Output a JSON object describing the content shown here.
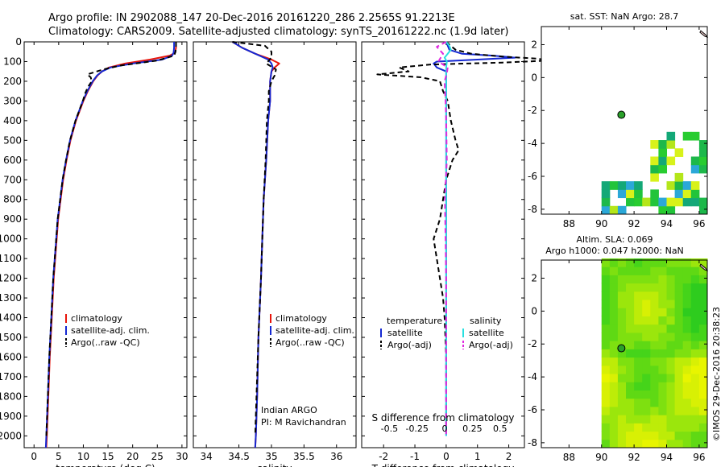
{
  "header": {
    "line1": "Argo profile: IN 2902088_147 20-Dec-2016 20161220_286 2.2565S 91.2213E",
    "line2": "Climatology: CARS2009. Satellite-adjusted climatology: synTS_20161222.nc (1.9d later)"
  },
  "colors": {
    "clim": "#e8140a",
    "sat": "#1428d2",
    "argo": "#000000",
    "sat_sal": "#28e0e0",
    "argo_sal": "#e028e0",
    "marker": "#2aa02a"
  },
  "chart_data": [
    {
      "type": "line",
      "name": "temperature-profile",
      "xlabel": "temperature (deg C)",
      "xlim": [
        -2,
        31
      ],
      "ylim": [
        2060,
        0
      ],
      "xticks": [
        0,
        5,
        10,
        15,
        20,
        25,
        30
      ],
      "yticks": [
        0,
        100,
        200,
        300,
        400,
        500,
        600,
        700,
        800,
        900,
        1000,
        1100,
        1200,
        1300,
        1400,
        1500,
        1600,
        1700,
        1800,
        1900,
        2000
      ],
      "series": [
        {
          "name": "climatology",
          "style": "clim",
          "depth": [
            0,
            30,
            55,
            70,
            90,
            110,
            130,
            150,
            170,
            200,
            250,
            300,
            400,
            500,
            600,
            700,
            800,
            900,
            1000,
            1200,
            1400,
            1600,
            1800,
            2000,
            2060
          ],
          "values": [
            28.8,
            28.8,
            28.6,
            27.5,
            23.5,
            18.5,
            15.2,
            13.8,
            12.9,
            12.0,
            10.9,
            10.0,
            8.5,
            7.4,
            6.6,
            5.9,
            5.4,
            4.9,
            4.6,
            4.0,
            3.6,
            3.2,
            2.9,
            2.6,
            2.5
          ]
        },
        {
          "name": "satellite-adj. clim.",
          "style": "sat",
          "depth": [
            0,
            30,
            55,
            70,
            90,
            110,
            130,
            150,
            170,
            200,
            250,
            300,
            400,
            500,
            600,
            700,
            800,
            900,
            1000,
            1200,
            1400,
            1600,
            1800,
            2000,
            2060
          ],
          "values": [
            28.4,
            28.4,
            28.3,
            28.0,
            26.0,
            20.0,
            15.5,
            13.8,
            12.8,
            11.9,
            10.8,
            9.9,
            8.4,
            7.3,
            6.5,
            5.8,
            5.3,
            4.8,
            4.5,
            3.9,
            3.5,
            3.1,
            2.8,
            2.5,
            2.4
          ]
        },
        {
          "name": "Argo(..raw -QC)",
          "style": "argo",
          "depth": [
            0,
            20,
            50,
            70,
            95,
            120,
            140,
            165,
            180,
            200,
            230,
            260,
            300,
            400,
            500,
            600,
            700,
            800,
            900,
            1000,
            1200,
            1400,
            1600,
            1800,
            2000
          ],
          "values": [
            28.8,
            28.8,
            28.7,
            28.4,
            25.0,
            17.5,
            14.0,
            10.8,
            11.5,
            11.7,
            10.9,
            10.4,
            9.9,
            8.4,
            7.3,
            6.5,
            5.8,
            5.3,
            4.8,
            4.5,
            3.9,
            3.5,
            3.1,
            2.8,
            2.5
          ]
        }
      ],
      "legend": [
        "climatology",
        "satellite-adj. clim.",
        "Argo(..raw -QC)"
      ]
    },
    {
      "type": "line",
      "name": "salinity-profile",
      "xlabel": "salinity",
      "xlim": [
        33.8,
        36.3
      ],
      "ylim": [
        2060,
        0
      ],
      "xticks": [
        34,
        34.5,
        35,
        35.5,
        36
      ],
      "series": [
        {
          "name": "climatology",
          "style": "clim",
          "depth": [
            0,
            30,
            60,
            90,
            110,
            130,
            150,
            200,
            300,
            400,
            600,
            800,
            1000,
            1200,
            1500,
            1800,
            2000,
            2060
          ],
          "values": [
            34.4,
            34.55,
            34.75,
            35.0,
            35.12,
            35.05,
            35.0,
            34.98,
            34.98,
            34.95,
            34.92,
            34.88,
            34.86,
            34.84,
            34.8,
            34.78,
            34.76,
            34.75
          ]
        },
        {
          "name": "satellite-adj. clim.",
          "style": "sat",
          "depth": [
            0,
            30,
            60,
            90,
            110,
            130,
            150,
            200,
            300,
            400,
            600,
            800,
            1000,
            1200,
            1500,
            1800,
            2000,
            2060
          ],
          "values": [
            34.4,
            34.55,
            34.75,
            34.95,
            35.0,
            35.02,
            35.0,
            34.98,
            34.98,
            34.95,
            34.92,
            34.88,
            34.86,
            34.84,
            34.8,
            34.78,
            34.76,
            34.75
          ]
        },
        {
          "name": "Argo(..raw -QC)",
          "style": "argo",
          "depth": [
            0,
            20,
            50,
            80,
            110,
            140,
            170,
            200,
            250,
            300,
            400,
            600,
            800,
            1000,
            1200,
            1500,
            1800,
            2000
          ],
          "values": [
            34.4,
            34.9,
            35.0,
            35.0,
            34.92,
            35.07,
            35.05,
            35.0,
            34.96,
            34.96,
            34.93,
            34.91,
            34.88,
            34.86,
            34.84,
            34.8,
            34.77,
            34.75
          ]
        }
      ],
      "legend": [
        "climatology",
        "satellite-adj. clim.",
        "Argo(..raw -QC)"
      ],
      "annotation": [
        "Indian ARGO",
        "PI: M Ravichandran"
      ]
    },
    {
      "type": "line",
      "name": "difference-profile",
      "xlabel": "T difference from climatology",
      "xlabel_top": "S difference from climatology",
      "xlim": [
        -2.7,
        2.5
      ],
      "ylim": [
        2060,
        0
      ],
      "xticks": [
        -2,
        -1,
        0,
        1,
        2
      ],
      "sticks": [
        -0.5,
        -0.25,
        0,
        0.25,
        0.5
      ],
      "stick_labels": [
        "-0.5",
        "-0.25",
        "0",
        "0.25",
        "0.5"
      ],
      "series": [
        {
          "name": "satellite T",
          "style": "sat",
          "depth": [
            0,
            40,
            60,
            70,
            80,
            90,
            100,
            110,
            130,
            150,
            200,
            250,
            300,
            400,
            500,
            600,
            700,
            800,
            900,
            1000,
            1200,
            1400,
            1600,
            1800,
            2000
          ],
          "values": [
            0,
            0.1,
            0.5,
            1.5,
            2.2,
            1.0,
            -0.3,
            -0.4,
            -0.3,
            0,
            0,
            0,
            0,
            0,
            0,
            0,
            0,
            0,
            0,
            0,
            0,
            0,
            0,
            0,
            0
          ]
        },
        {
          "name": "Argo(-adj) T",
          "style": "argo",
          "depth": [
            0,
            40,
            60,
            75,
            85,
            95,
            105,
            115,
            130,
            150,
            165,
            180,
            200,
            250,
            300,
            400,
            500,
            550,
            600,
            700,
            800,
            900,
            1000,
            1100,
            1200,
            1300,
            1400,
            1600,
            1800,
            2000
          ],
          "values": [
            0,
            0.3,
            0.8,
            1.8,
            2.9,
            3.3,
            1.8,
            -0.5,
            -1.5,
            -1.2,
            -2.2,
            -0.8,
            -0.2,
            -0.1,
            0.05,
            0.15,
            0.3,
            0.4,
            0.2,
            0,
            -0.1,
            -0.2,
            -0.4,
            -0.3,
            -0.2,
            -0.1,
            -0.05,
            0,
            0,
            0
          ]
        },
        {
          "name": "satellite S",
          "style": "sat_sal",
          "depth": [
            0,
            20,
            40,
            60,
            80,
            100,
            130,
            160,
            200,
            300,
            600,
            900,
            1200,
            1500,
            1800,
            2000
          ],
          "values": [
            0,
            0.1,
            0.15,
            0.05,
            -0.05,
            0.02,
            0.0,
            0.0,
            0.0,
            0.0,
            0.0,
            0.0,
            0.0,
            0.0,
            0.0,
            0.0
          ]
        },
        {
          "name": "Argo(-adj) S",
          "style": "argo_sal",
          "depth": [
            0,
            25,
            60,
            100,
            130,
            160,
            200,
            300,
            400,
            600,
            800,
            1000,
            1200,
            1400,
            1600,
            1800,
            2000
          ],
          "values": [
            0,
            -0.3,
            -0.1,
            -0.25,
            0.05,
            0.02,
            -0.05,
            -0.02,
            0,
            0.02,
            -0.04,
            -0.02,
            0,
            0,
            0,
            0,
            0
          ]
        }
      ],
      "legend_t": {
        "title": "temperature",
        "items": [
          "satellite",
          "Argo(-adj)"
        ]
      },
      "legend_s": {
        "title": "salinity",
        "items": [
          "satellite",
          "Argo(-adj)"
        ]
      }
    },
    {
      "type": "heatmap",
      "name": "sst-map",
      "title": "sat. SST: NaN Argo: 28.7",
      "xlim": [
        86.3,
        96.5
      ],
      "ylim": [
        -8.3,
        3.1
      ],
      "xticks": [
        88,
        90,
        92,
        94,
        96
      ],
      "yticks": [
        -8,
        -6,
        -4,
        -2,
        0,
        2
      ],
      "argo_position": [
        91.22,
        -2.26
      ],
      "legend_kind": "patchy SST cells in south-east corner"
    },
    {
      "type": "heatmap",
      "name": "sla-map",
      "title_line1": "Altim. SLA: 0.069",
      "title_line2": "Argo h1000: 0.047 h2000: NaN",
      "xlim": [
        86.3,
        96.5
      ],
      "ylim": [
        -8.3,
        3.1
      ],
      "xticks": [
        88,
        90,
        92,
        94,
        96
      ],
      "yticks": [
        -8,
        -6,
        -4,
        -2,
        0,
        2
      ],
      "argo_position": [
        91.22,
        -2.26
      ],
      "data_west_edge": 90.0
    }
  ],
  "credit": "©IMOS 29-Dec-2016 20:38:23"
}
